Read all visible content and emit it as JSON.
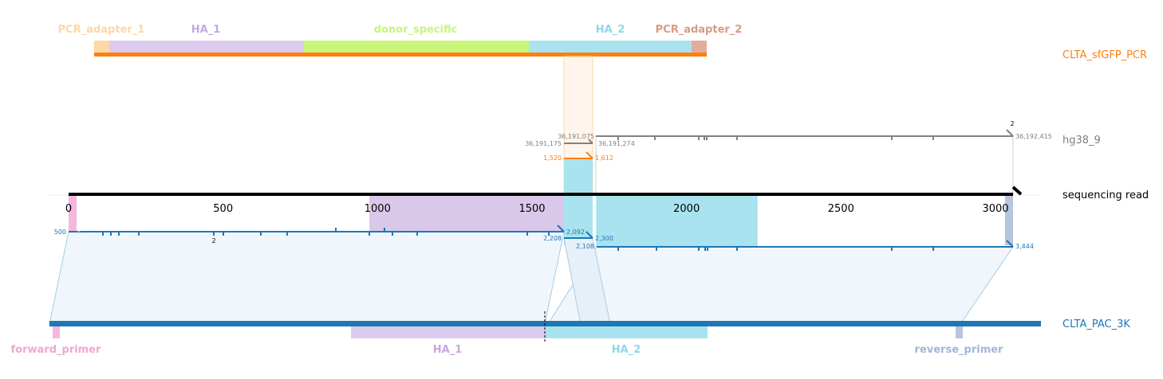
{
  "top_annotations": [
    {
      "label": "PCR_adapter_1",
      "color": "#fdd7a6"
    },
    {
      "label": "HA_1",
      "color": "#c5a8e0"
    },
    {
      "label": "donor_specific",
      "color": "#c8f57a"
    },
    {
      "label": "HA_2",
      "color": "#8fd8e8"
    },
    {
      "label": "PCR_adapter_2",
      "color": "#d99a86"
    }
  ],
  "bottom_annotations": [
    {
      "label": "forward_primer",
      "color": "#f2a6d4"
    },
    {
      "label": "HA_1",
      "color": "#c5a8e0"
    },
    {
      "label": "HA_2",
      "color": "#8fd8e8"
    },
    {
      "label": "reverse_primer",
      "color": "#a3b6d6"
    }
  ],
  "tracks": {
    "pcr": {
      "label": "CLTA_sfGFP_PCR",
      "color": "#ff7f0e"
    },
    "genome": {
      "label": "hg38_9",
      "color": "#808080"
    },
    "read": {
      "label": "sequencing read",
      "color": "#000000"
    },
    "amplicon": {
      "label": "CLTA_PAC_3K",
      "color": "#1f77b4"
    }
  },
  "axis_ticks": [
    "0",
    "500",
    "1000",
    "1500",
    "2000",
    "2500",
    "3000"
  ],
  "alignment_labels": {
    "genome_a_start": "36,191,175",
    "genome_a_end": "36,191,274",
    "genome_b_start": "36,191,075",
    "genome_b_end": "36,192,415",
    "genome_count": "2",
    "pcr_start": "1,520",
    "pcr_end": "1,612",
    "amp_a_start": "500",
    "amp_a_end": "2,092",
    "amp_a_count": "2",
    "amp_mid_start": "2,208",
    "amp_mid_end": "2,300",
    "amp_b_start": "2,108",
    "amp_b_end": "3,444"
  }
}
